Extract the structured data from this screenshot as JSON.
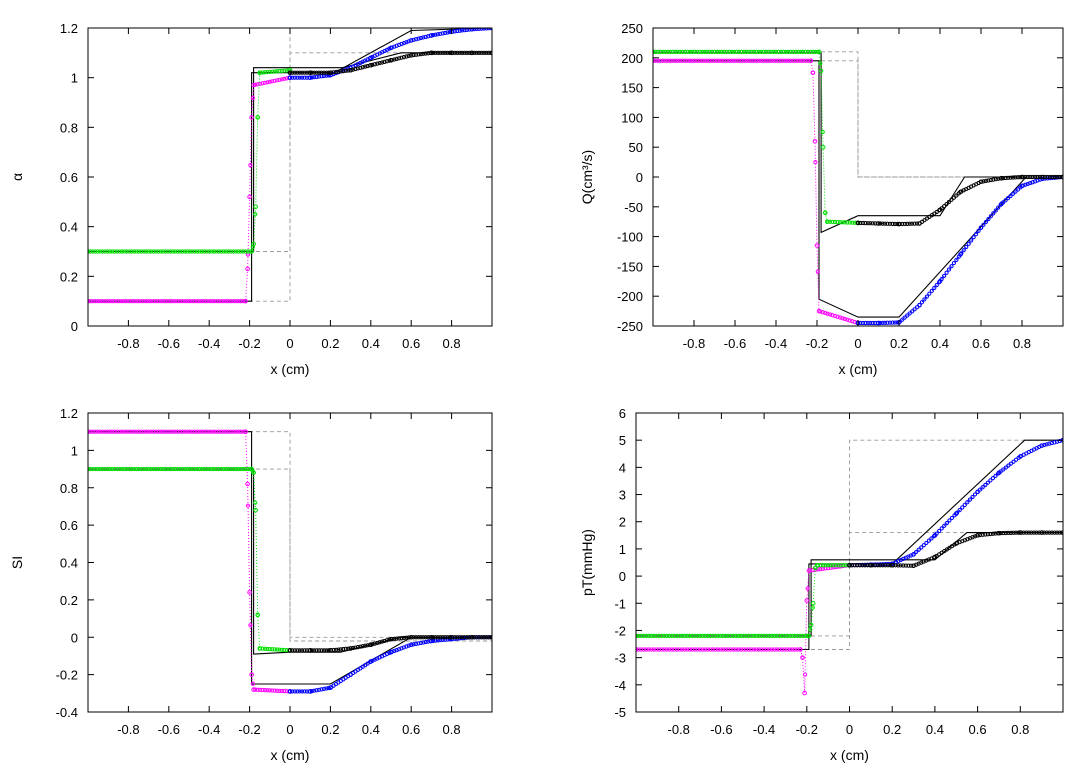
{
  "chart_data": [
    {
      "type": "line",
      "id": "alpha",
      "xlabel": "x (cm)",
      "ylabel": "α",
      "xlim": [
        -1,
        1
      ],
      "ylim": [
        0,
        1.2
      ],
      "xticks": [
        -0.8,
        -0.6,
        -0.4,
        -0.2,
        0,
        0.2,
        0.4,
        0.6,
        0.8
      ],
      "xtick_labels": [
        "-0.8",
        "-0.6",
        "-0.4",
        "-0.2",
        "0",
        "0.2",
        "0.4",
        "0.6",
        "0.8"
      ],
      "yticks": [
        0,
        0.2,
        0.4,
        0.6,
        0.8,
        1,
        1.2
      ],
      "ytick_labels": [
        "0",
        "0.2",
        "0.4",
        "0.6",
        "0.8",
        "1",
        "1.2"
      ],
      "series": [
        {
          "name": "dashed-initial-top",
          "color": "#999999",
          "style": "dashed",
          "x": [
            -1,
            0,
            0,
            1
          ],
          "y": [
            0.3,
            0.3,
            1.1,
            1.1
          ]
        },
        {
          "name": "dashed-initial-bottom",
          "color": "#999999",
          "style": "dashed",
          "x": [
            -1,
            0,
            0,
            1
          ],
          "y": [
            0.1,
            0.1,
            1.2,
            1.2
          ]
        },
        {
          "name": "exact-green",
          "color": "#000000",
          "style": "solid",
          "x": [
            -1,
            -0.18,
            -0.18,
            0,
            0.26,
            0.55,
            1
          ],
          "y": [
            0.3,
            0.3,
            1.04,
            1.04,
            1.04,
            1.1,
            1.1
          ]
        },
        {
          "name": "exact-magenta",
          "color": "#000000",
          "style": "solid",
          "x": [
            -1,
            -0.19,
            -0.19,
            0,
            0.22,
            0.6,
            1
          ],
          "y": [
            0.1,
            0.1,
            1.02,
            1.02,
            1.02,
            1.19,
            1.2
          ]
        },
        {
          "name": "numeric-magenta",
          "color": "#ff00ff",
          "style": "markers",
          "x": [
            -1,
            -0.22,
            -0.21,
            -0.2,
            -0.19,
            -0.18,
            0
          ],
          "y": [
            0.1,
            0.1,
            0.23,
            0.52,
            0.84,
            0.97,
            1.0
          ]
        },
        {
          "name": "numeric-green",
          "color": "#00dd00",
          "style": "markers",
          "x": [
            -1,
            -0.19,
            -0.18,
            -0.17,
            -0.16,
            -0.15,
            0
          ],
          "y": [
            0.3,
            0.3,
            0.33,
            0.48,
            0.84,
            1.02,
            1.03
          ]
        },
        {
          "name": "numeric-blue",
          "color": "#0000ff",
          "style": "markers",
          "x": [
            0,
            0.1,
            0.2,
            0.3,
            0.4,
            0.5,
            0.6,
            0.7,
            0.8,
            0.9,
            1
          ],
          "y": [
            1.0,
            1.0,
            1.01,
            1.04,
            1.08,
            1.12,
            1.15,
            1.17,
            1.185,
            1.195,
            1.2
          ]
        },
        {
          "name": "numeric-black",
          "color": "#000000",
          "style": "markers",
          "x": [
            0,
            0.1,
            0.2,
            0.3,
            0.4,
            0.5,
            0.6,
            0.7,
            0.8,
            0.9,
            1
          ],
          "y": [
            1.02,
            1.02,
            1.02,
            1.03,
            1.05,
            1.07,
            1.09,
            1.1,
            1.1,
            1.1,
            1.1
          ]
        }
      ]
    },
    {
      "type": "line",
      "id": "Q",
      "xlabel": "x (cm)",
      "ylabel": "Q(cm³/s)",
      "xlim": [
        -1,
        1
      ],
      "ylim": [
        -250,
        250
      ],
      "xticks": [
        -0.8,
        -0.6,
        -0.4,
        -0.2,
        0,
        0.2,
        0.4,
        0.6,
        0.8
      ],
      "xtick_labels": [
        "-0.8",
        "-0.6",
        "-0.4",
        "-0.2",
        "0",
        "0.2",
        "0.4",
        "0.6",
        "0.8"
      ],
      "yticks": [
        -250,
        -200,
        -150,
        -100,
        -50,
        0,
        50,
        100,
        150,
        200,
        250
      ],
      "ytick_labels": [
        "-250",
        "-200",
        "-150",
        "-100",
        "-50",
        "0",
        "50",
        "100",
        "150",
        "200",
        "250"
      ],
      "series": [
        {
          "name": "dashed-initial-top",
          "color": "#999999",
          "style": "dashed",
          "x": [
            -1,
            0,
            0,
            1
          ],
          "y": [
            210,
            210,
            0,
            0
          ]
        },
        {
          "name": "dashed-initial-bottom",
          "color": "#999999",
          "style": "dashed",
          "x": [
            -1,
            0,
            0,
            1
          ],
          "y": [
            195,
            195,
            0,
            0
          ]
        },
        {
          "name": "exact-green",
          "color": "#000000",
          "style": "solid",
          "x": [
            -1,
            -0.18,
            -0.18,
            0,
            0.4,
            0.52,
            1
          ],
          "y": [
            208,
            208,
            -93,
            -65,
            -65,
            0,
            0
          ]
        },
        {
          "name": "exact-magenta",
          "color": "#000000",
          "style": "solid",
          "x": [
            -1,
            -0.19,
            -0.19,
            0,
            0.2,
            0.82,
            1
          ],
          "y": [
            195,
            195,
            -205,
            -235,
            -235,
            0,
            0
          ]
        },
        {
          "name": "numeric-magenta",
          "color": "#ff00ff",
          "style": "markers",
          "x": [
            -1,
            -0.23,
            -0.22,
            -0.21,
            -0.2,
            -0.19,
            0
          ],
          "y": [
            195,
            195,
            175,
            60,
            -115,
            -225,
            -245
          ]
        },
        {
          "name": "numeric-green",
          "color": "#00dd00",
          "style": "markers",
          "x": [
            -1,
            -0.19,
            -0.18,
            -0.17,
            -0.16,
            -0.15,
            0
          ],
          "y": [
            210,
            210,
            178,
            50,
            -60,
            -75,
            -77
          ]
        },
        {
          "name": "numeric-blue",
          "color": "#0000ff",
          "style": "markers",
          "x": [
            0,
            0.1,
            0.2,
            0.3,
            0.4,
            0.5,
            0.6,
            0.7,
            0.8,
            0.9,
            1
          ],
          "y": [
            -245,
            -245,
            -244,
            -215,
            -175,
            -130,
            -85,
            -45,
            -15,
            -3,
            0
          ]
        },
        {
          "name": "numeric-black",
          "color": "#000000",
          "style": "markers",
          "x": [
            0,
            0.1,
            0.2,
            0.3,
            0.4,
            0.5,
            0.6,
            0.7,
            0.8,
            0.9,
            1
          ],
          "y": [
            -77,
            -78,
            -79,
            -78,
            -55,
            -25,
            -8,
            -2,
            0,
            0,
            0
          ]
        }
      ]
    },
    {
      "type": "line",
      "id": "SI",
      "xlabel": "x (cm)",
      "ylabel": "SI",
      "xlim": [
        -1,
        1
      ],
      "ylim": [
        -0.4,
        1.2
      ],
      "xticks": [
        -0.8,
        -0.6,
        -0.4,
        -0.2,
        0,
        0.2,
        0.4,
        0.6,
        0.8
      ],
      "xtick_labels": [
        "-0.8",
        "-0.6",
        "-0.4",
        "-0.2",
        "0",
        "0.2",
        "0.4",
        "0.6",
        "0.8"
      ],
      "yticks": [
        -0.4,
        -0.2,
        0,
        0.2,
        0.4,
        0.6,
        0.8,
        1,
        1.2
      ],
      "ytick_labels": [
        "-0.4",
        "-0.2",
        "0",
        "0.2",
        "0.4",
        "0.6",
        "0.8",
        "1",
        "1.2"
      ],
      "series": [
        {
          "name": "dashed-initial-top",
          "color": "#999999",
          "style": "dashed",
          "x": [
            -1,
            0,
            0,
            1
          ],
          "y": [
            1.1,
            1.1,
            0,
            0
          ]
        },
        {
          "name": "dashed-initial-bottom",
          "color": "#999999",
          "style": "dashed",
          "x": [
            -1,
            0,
            0,
            1
          ],
          "y": [
            0.9,
            0.9,
            -0.02,
            -0.02
          ]
        },
        {
          "name": "exact-green",
          "color": "#000000",
          "style": "solid",
          "x": [
            -1,
            -0.18,
            -0.18,
            0,
            0.25,
            0.55,
            1
          ],
          "y": [
            0.9,
            0.9,
            -0.09,
            -0.08,
            -0.08,
            0,
            0
          ]
        },
        {
          "name": "exact-magenta",
          "color": "#000000",
          "style": "solid",
          "x": [
            -1,
            -0.19,
            -0.19,
            0,
            0.2,
            0.6,
            1
          ],
          "y": [
            1.1,
            1.1,
            -0.25,
            -0.25,
            -0.25,
            0,
            0
          ]
        },
        {
          "name": "numeric-magenta",
          "color": "#ff00ff",
          "style": "markers",
          "x": [
            -1,
            -0.22,
            -0.21,
            -0.2,
            -0.19,
            -0.18,
            0
          ],
          "y": [
            1.1,
            1.1,
            0.82,
            0.24,
            -0.2,
            -0.28,
            -0.29
          ]
        },
        {
          "name": "numeric-green",
          "color": "#00dd00",
          "style": "markers",
          "x": [
            -1,
            -0.19,
            -0.18,
            -0.17,
            -0.16,
            -0.15,
            0
          ],
          "y": [
            0.9,
            0.9,
            0.88,
            0.68,
            0.12,
            -0.06,
            -0.07
          ]
        },
        {
          "name": "numeric-blue",
          "color": "#0000ff",
          "style": "markers",
          "x": [
            0,
            0.1,
            0.2,
            0.3,
            0.4,
            0.5,
            0.6,
            0.7,
            0.8,
            0.9,
            1
          ],
          "y": [
            -0.29,
            -0.29,
            -0.27,
            -0.2,
            -0.13,
            -0.08,
            -0.04,
            -0.02,
            -0.01,
            0,
            0
          ]
        },
        {
          "name": "numeric-black",
          "color": "#000000",
          "style": "markers",
          "x": [
            0,
            0.1,
            0.2,
            0.3,
            0.4,
            0.5,
            0.6,
            0.7,
            0.8,
            0.9,
            1
          ],
          "y": [
            -0.07,
            -0.07,
            -0.07,
            -0.06,
            -0.04,
            -0.01,
            0,
            0,
            0,
            0,
            0
          ]
        }
      ]
    },
    {
      "type": "line",
      "id": "pT",
      "xlabel": "x (cm)",
      "ylabel": "pT(mmHg)",
      "xlim": [
        -1,
        1
      ],
      "ylim": [
        -5,
        6
      ],
      "xticks": [
        -0.8,
        -0.6,
        -0.4,
        -0.2,
        0,
        0.2,
        0.4,
        0.6,
        0.8
      ],
      "xtick_labels": [
        "-0.8",
        "-0.6",
        "-0.4",
        "-0.2",
        "0",
        "0.2",
        "0.4",
        "0.6",
        "0.8"
      ],
      "yticks": [
        -5,
        -4,
        -3,
        -2,
        -1,
        0,
        1,
        2,
        3,
        4,
        5,
        6
      ],
      "ytick_labels": [
        "-5",
        "-4",
        "-3",
        "-2",
        "-1",
        "0",
        "1",
        "2",
        "3",
        "4",
        "5",
        "6"
      ],
      "series": [
        {
          "name": "dashed-initial-top",
          "color": "#999999",
          "style": "dashed",
          "x": [
            -1,
            0,
            0,
            1
          ],
          "y": [
            -2.2,
            -2.2,
            5.0,
            5.0
          ]
        },
        {
          "name": "dashed-initial-bottom",
          "color": "#999999",
          "style": "dashed",
          "x": [
            -1,
            0,
            0,
            1
          ],
          "y": [
            -2.7,
            -2.7,
            1.6,
            1.6
          ]
        },
        {
          "name": "exact-green",
          "color": "#000000",
          "style": "solid",
          "x": [
            -1,
            -0.18,
            -0.18,
            0,
            0.4,
            0.55,
            1
          ],
          "y": [
            -2.2,
            -2.2,
            0.6,
            0.6,
            0.6,
            1.6,
            1.6
          ]
        },
        {
          "name": "exact-magenta",
          "color": "#000000",
          "style": "solid",
          "x": [
            -1,
            -0.19,
            -0.19,
            0,
            0.2,
            0.82,
            1
          ],
          "y": [
            -2.7,
            -2.7,
            0.45,
            0.45,
            0.45,
            5.0,
            5.0
          ]
        },
        {
          "name": "numeric-magenta",
          "color": "#ff00ff",
          "style": "markers",
          "x": [
            -1,
            -0.23,
            -0.22,
            -0.21,
            -0.2,
            -0.19,
            0
          ],
          "y": [
            -2.7,
            -2.7,
            -3.0,
            -4.3,
            -0.9,
            0.2,
            0.4
          ]
        },
        {
          "name": "numeric-green",
          "color": "#00dd00",
          "style": "markers",
          "x": [
            -1,
            -0.19,
            -0.18,
            -0.17,
            -0.16,
            -0.15,
            0
          ],
          "y": [
            -2.2,
            -2.2,
            -1.8,
            -1.0,
            0.3,
            0.4,
            0.4
          ]
        },
        {
          "name": "numeric-blue",
          "color": "#0000ff",
          "style": "markers",
          "x": [
            0,
            0.1,
            0.2,
            0.3,
            0.4,
            0.5,
            0.6,
            0.7,
            0.8,
            0.9,
            1
          ],
          "y": [
            0.4,
            0.42,
            0.45,
            0.8,
            1.5,
            2.3,
            3.1,
            3.8,
            4.4,
            4.8,
            5.0
          ]
        },
        {
          "name": "numeric-black",
          "color": "#000000",
          "style": "markers",
          "x": [
            0,
            0.1,
            0.2,
            0.3,
            0.4,
            0.5,
            0.6,
            0.7,
            0.8,
            0.9,
            1
          ],
          "y": [
            0.4,
            0.4,
            0.4,
            0.38,
            0.7,
            1.2,
            1.5,
            1.58,
            1.6,
            1.6,
            1.6
          ]
        }
      ]
    }
  ]
}
